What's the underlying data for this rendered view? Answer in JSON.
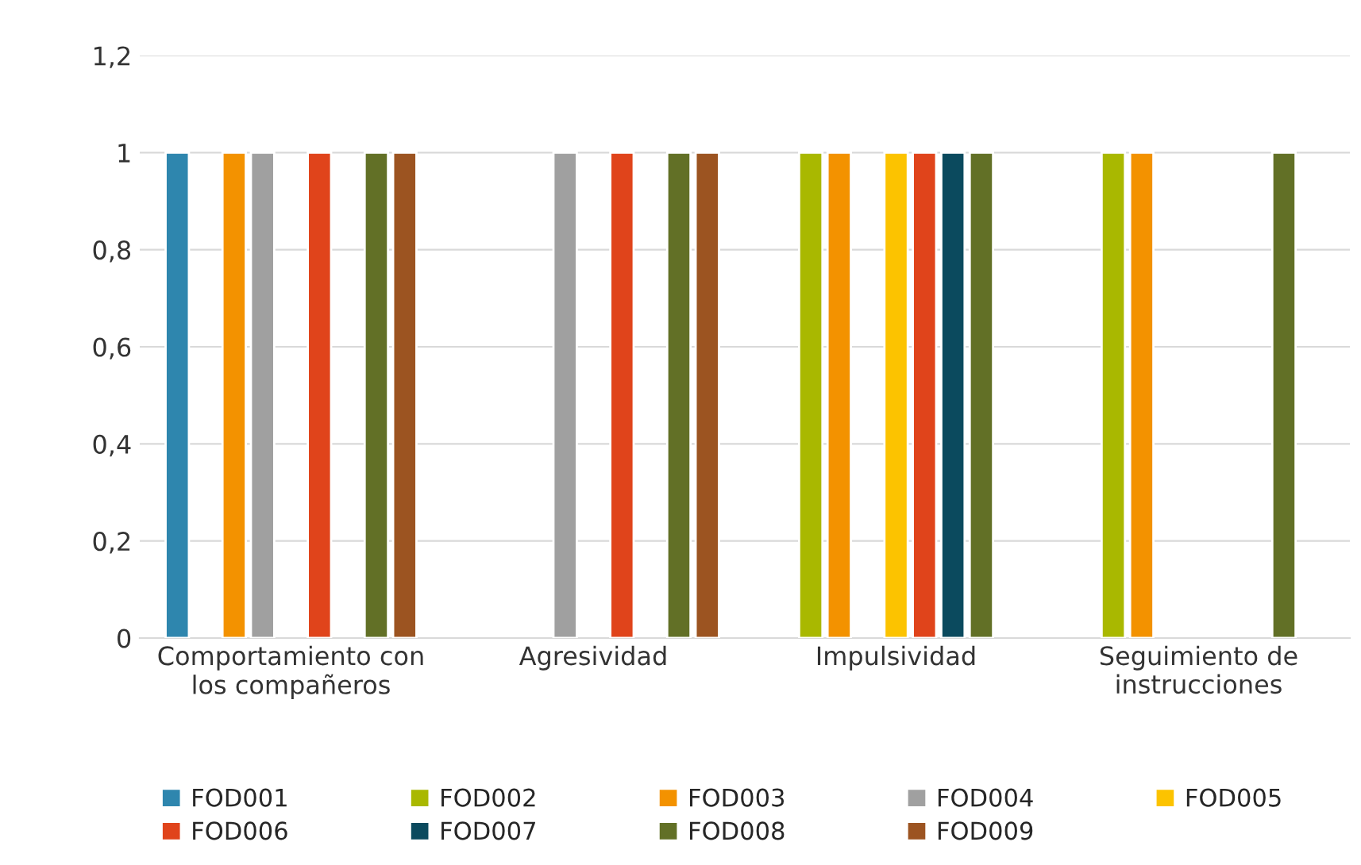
{
  "chart_data": {
    "type": "bar",
    "categories": [
      "Comportamiento con los compañeros",
      "Agresividad",
      "Impulsividad",
      "Seguimiento de instrucciones"
    ],
    "series": [
      {
        "name": "FOD001",
        "color": "#2e86ae",
        "values": [
          1,
          null,
          null,
          null
        ]
      },
      {
        "name": "FOD002",
        "color": "#a9b800",
        "values": [
          null,
          null,
          1,
          1
        ]
      },
      {
        "name": "FOD003",
        "color": "#f39200",
        "values": [
          1,
          null,
          1,
          1
        ]
      },
      {
        "name": "FOD004",
        "color": "#a0a0a0",
        "values": [
          1,
          1,
          null,
          null
        ]
      },
      {
        "name": "FOD005",
        "color": "#fcc300",
        "values": [
          null,
          null,
          1,
          null
        ]
      },
      {
        "name": "FOD006",
        "color": "#e0441b",
        "values": [
          1,
          1,
          1,
          null
        ]
      },
      {
        "name": "FOD007",
        "color": "#0b4a5e",
        "values": [
          null,
          null,
          1,
          null
        ]
      },
      {
        "name": "FOD008",
        "color": "#627026",
        "values": [
          1,
          1,
          1,
          1
        ]
      },
      {
        "name": "FOD009",
        "color": "#9c5421",
        "values": [
          1,
          1,
          null,
          null
        ]
      }
    ],
    "ylim": [
      0,
      1.2
    ],
    "yticks": [
      0,
      {
        "value": 0.2,
        "label": "0,2"
      },
      {
        "value": 0.4,
        "label": "0,4"
      },
      {
        "value": 0.6,
        "label": "0,6"
      },
      {
        "value": 0.8,
        "label": "0,8"
      },
      1,
      {
        "value": 1.2,
        "label": "1,2"
      }
    ],
    "grid": "y",
    "legend": "bottom"
  }
}
